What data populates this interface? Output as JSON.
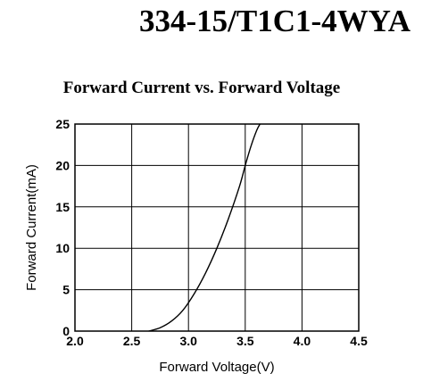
{
  "header": {
    "part_number": "334-15/T1C1-4WYA"
  },
  "chart_data": {
    "type": "line",
    "title": "Forward Current vs. Forward Voltage",
    "xlabel": "Forward Voltage(V)",
    "ylabel": "Forward Current(mA)",
    "xlim": [
      2.0,
      4.5
    ],
    "ylim": [
      0,
      25
    ],
    "xticks": [
      2.0,
      2.5,
      3.0,
      3.5,
      4.0,
      4.5
    ],
    "xtick_labels": [
      "2.0",
      "2.5",
      "3.0",
      "3.5",
      "4.0",
      "4.5"
    ],
    "yticks": [
      0,
      5,
      10,
      15,
      20,
      25
    ],
    "ytick_labels": [
      "0",
      "5",
      "10",
      "15",
      "20",
      "25"
    ],
    "grid": true,
    "series": [
      {
        "color": "#000000",
        "x": [
          2.65,
          2.75,
          2.85,
          2.95,
          3.05,
          3.15,
          3.25,
          3.35,
          3.45,
          3.5,
          3.55,
          3.6,
          3.63
        ],
        "y": [
          0.0,
          0.4,
          1.2,
          2.5,
          4.5,
          7.0,
          10.0,
          13.5,
          17.5,
          20.0,
          22.3,
          24.2,
          25.0
        ]
      }
    ]
  }
}
